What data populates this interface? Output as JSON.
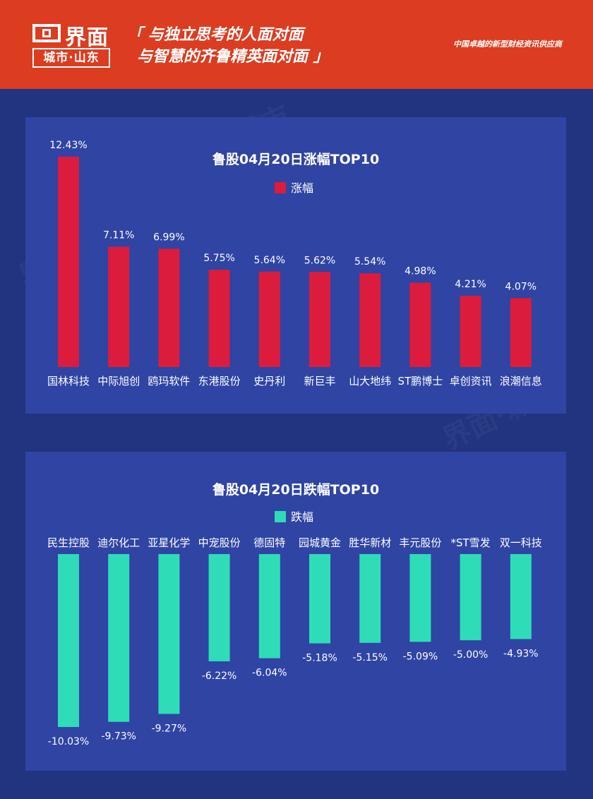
{
  "header": {
    "logo_text": "界面",
    "logo_sub": "城市·山东",
    "slogan_line1": "「 与独立思考的人面对面",
    "slogan_line2": "与智慧的齐鲁精英面对面 」",
    "tagline": "中国卓越的新型财经资讯供应商"
  },
  "colors": {
    "header_bg": "#dc3c20",
    "page_bg": "#22337f",
    "panel_bg": "#2f44a3",
    "gain_bar": "#dc1c3c",
    "loss_bar": "#2edcb8"
  },
  "chart_data": [
    {
      "type": "bar",
      "title": "鲁股04月20日涨幅TOP10",
      "legend": "涨幅",
      "categories": [
        "国林科技",
        "中际旭创",
        "鸥玛软件",
        "东港股份",
        "史丹利",
        "新巨丰",
        "山大地纬",
        "ST鹏博士",
        "卓创资讯",
        "浪潮信息"
      ],
      "values": [
        12.43,
        7.11,
        6.99,
        5.75,
        5.64,
        5.62,
        5.54,
        4.98,
        4.21,
        4.07
      ],
      "value_labels": [
        "12.43%",
        "7.11%",
        "6.99%",
        "5.75%",
        "5.64%",
        "5.62%",
        "5.54%",
        "4.98%",
        "4.21%",
        "4.07%"
      ],
      "color": "#dc1c3c"
    },
    {
      "type": "bar",
      "title": "鲁股04月20日跌幅TOP10",
      "legend": "跌幅",
      "categories": [
        "民生控股",
        "迪尔化工",
        "亚星化学",
        "中宠股份",
        "德固特",
        "园城黄金",
        "胜华新材",
        "丰元股份",
        "*ST雪发",
        "双一科技"
      ],
      "values": [
        -10.03,
        -9.73,
        -9.27,
        -6.22,
        -6.04,
        -5.18,
        -5.15,
        -5.09,
        -5.0,
        -4.93
      ],
      "value_labels": [
        "-10.03%",
        "-9.73%",
        "-9.27%",
        "-6.22%",
        "-6.04%",
        "-5.18%",
        "-5.15%",
        "-5.09%",
        "-5.00%",
        "-4.93%"
      ],
      "color": "#2edcb8"
    }
  ]
}
